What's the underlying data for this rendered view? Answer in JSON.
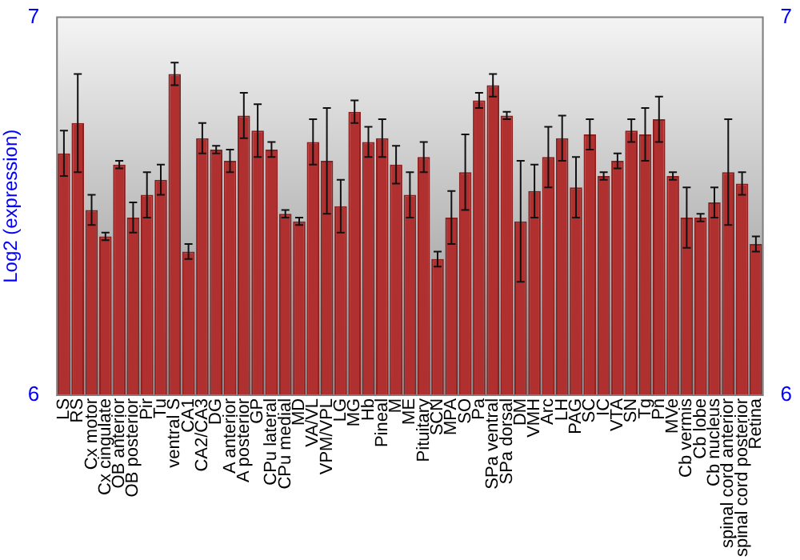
{
  "chart_data": {
    "type": "bar",
    "ylabel": "Log2 (expression)",
    "categories": [
      "LS",
      "RS",
      "Cx motor",
      "Cx cingulate",
      "OB anterior",
      "OB posterior",
      "Pir",
      "Tu",
      "ventral S",
      "CA1",
      "CA2/CA3",
      "DG",
      "A anterior",
      "A posterior",
      "GP",
      "CPu lateral",
      "CPu medial",
      "MD",
      "VA/VL",
      "VPM/VPL",
      "LG",
      "MG",
      "Hb",
      "Pineal",
      "M",
      "ME",
      "Pituitary",
      "SCN",
      "MPA",
      "SO",
      "Pa",
      "SPa ventral",
      "SPa dorsal",
      "DM",
      "VMH",
      "Arc",
      "LH",
      "PAG",
      "SC",
      "IC",
      "VTA",
      "SN",
      "Tg",
      "Pn",
      "MVe",
      "Cb vermis",
      "Cb lobe",
      "Cb nucleus",
      "spinal cord anterior",
      "spinal cord posterior",
      "Retina"
    ],
    "values": [
      6.64,
      6.72,
      6.49,
      6.42,
      6.61,
      6.47,
      6.53,
      6.57,
      6.85,
      6.38,
      6.68,
      6.65,
      6.62,
      6.74,
      6.7,
      6.65,
      6.48,
      6.46,
      6.67,
      6.62,
      6.5,
      6.75,
      6.67,
      6.68,
      6.61,
      6.53,
      6.63,
      6.36,
      6.47,
      6.59,
      6.78,
      6.82,
      6.74,
      6.46,
      6.54,
      6.63,
      6.68,
      6.55,
      6.69,
      6.58,
      6.62,
      6.7,
      6.69,
      6.73,
      6.58,
      6.47,
      6.47,
      6.51,
      6.59,
      6.56,
      6.4
    ],
    "errors": [
      0.06,
      0.13,
      0.04,
      0.01,
      0.01,
      0.04,
      0.06,
      0.04,
      0.03,
      0.02,
      0.04,
      0.01,
      0.03,
      0.06,
      0.07,
      0.02,
      0.01,
      0.01,
      0.06,
      0.14,
      0.07,
      0.03,
      0.04,
      0.05,
      0.05,
      0.06,
      0.04,
      0.02,
      0.07,
      0.1,
      0.02,
      0.03,
      0.01,
      0.16,
      0.07,
      0.08,
      0.06,
      0.08,
      0.04,
      0.01,
      0.02,
      0.03,
      0.07,
      0.06,
      0.01,
      0.08,
      0.01,
      0.04,
      0.14,
      0.03,
      0.02
    ],
    "color": "#b03030",
    "ylim": [
      6,
      7
    ],
    "yticks": [
      6,
      7
    ],
    "y2lim": [
      6,
      7
    ],
    "y2ticks": [
      6,
      7
    ],
    "grid": false,
    "legend": false
  }
}
